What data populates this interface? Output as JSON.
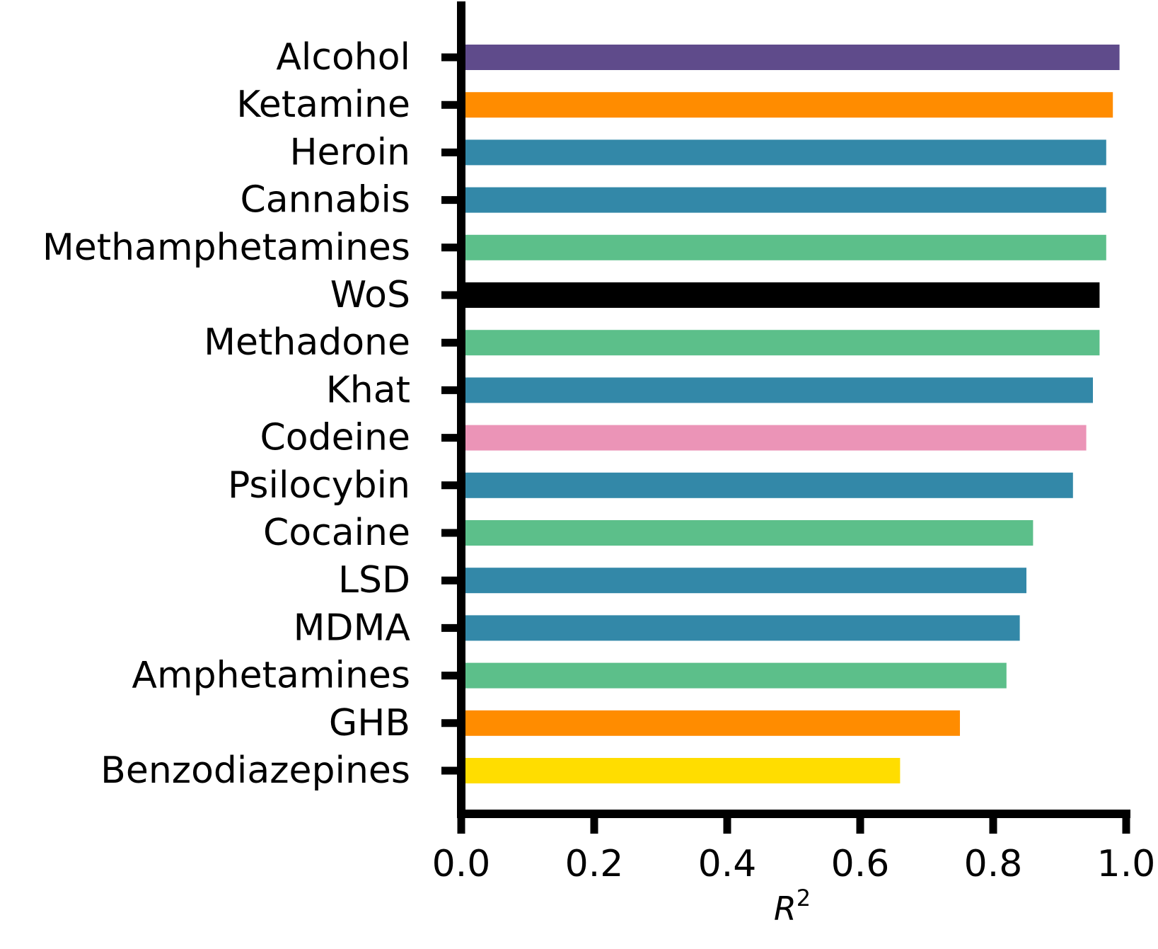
{
  "chart_data": {
    "type": "bar",
    "orientation": "horizontal",
    "categories": [
      "Alcohol",
      "Ketamine",
      "Heroin",
      "Cannabis",
      "Methamphetamines",
      "WoS",
      "Methadone",
      "Khat",
      "Codeine",
      "Psilocybin",
      "Cocaine",
      "LSD",
      "MDMA",
      "Amphetamines",
      "GHB",
      "Benzodiazepines"
    ],
    "values": [
      0.99,
      0.98,
      0.97,
      0.97,
      0.97,
      0.96,
      0.96,
      0.95,
      0.94,
      0.92,
      0.86,
      0.85,
      0.84,
      0.82,
      0.75,
      0.66
    ],
    "bar_colors": [
      "#5f4b8b",
      "#ff8c00",
      "#3388a8",
      "#3388a8",
      "#5cbf8a",
      "#000000",
      "#5cbf8a",
      "#3388a8",
      "#eb94b7",
      "#3388a8",
      "#5cbf8a",
      "#3388a8",
      "#3388a8",
      "#5cbf8a",
      "#ff8c00",
      "#ffdd00"
    ],
    "xlabel_base": "R",
    "xlabel_sup": "2",
    "xlim": [
      0,
      1.0
    ],
    "xticks": [
      0.0,
      0.2,
      0.4,
      0.6,
      0.8,
      1.0
    ],
    "xtick_labels": [
      "0.0",
      "0.2",
      "0.4",
      "0.6",
      "0.8",
      "1.0"
    ],
    "grid": false,
    "legend": "none"
  }
}
